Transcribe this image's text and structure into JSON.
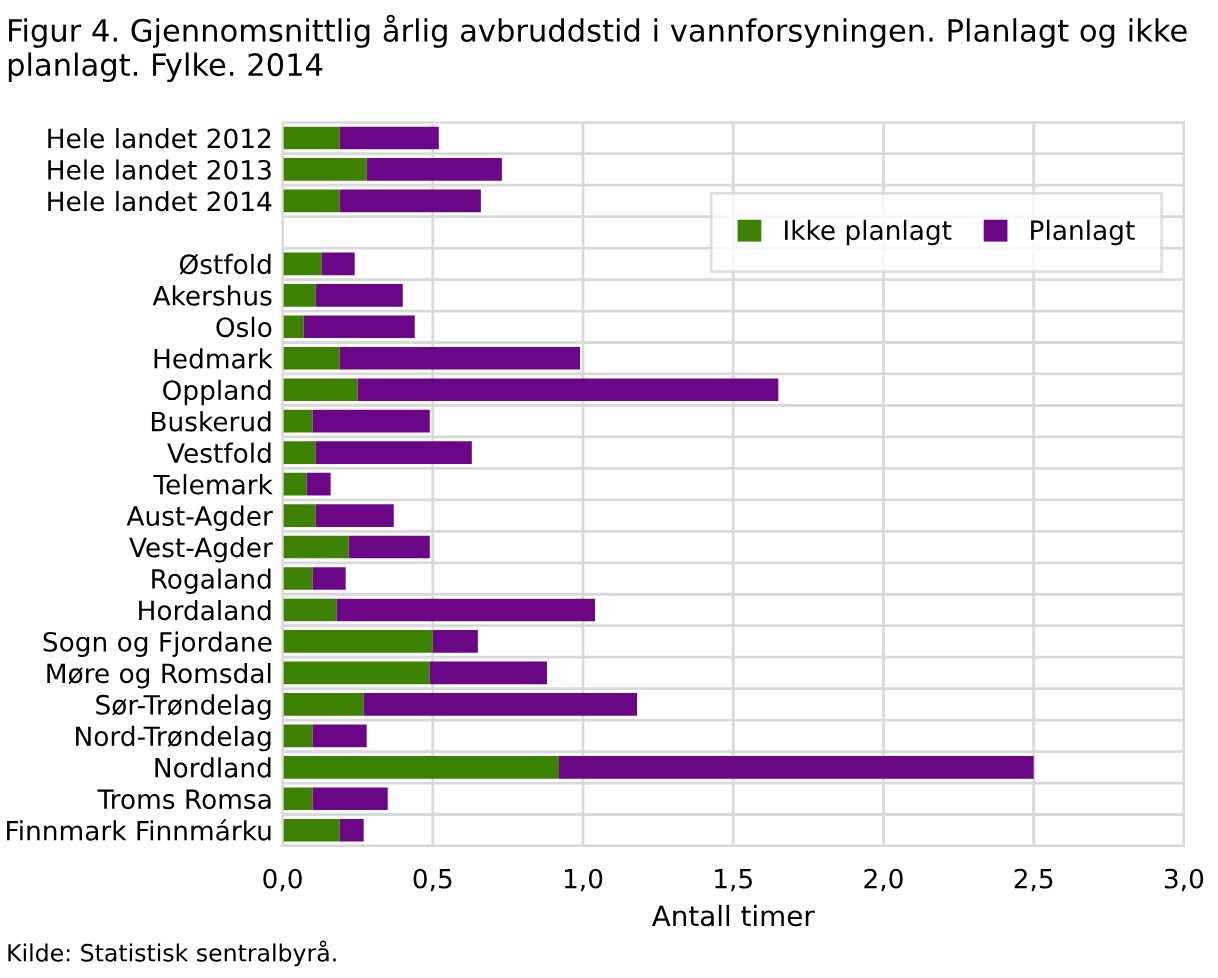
{
  "chart_data": {
    "type": "bar",
    "orientation": "horizontal",
    "stacked": true,
    "title": "Figur 4. Gjennomsnittlig årlig avbruddstid i vannforsyningen. Planlagt og ikke planlagt. Fylke. 2014",
    "xlabel": "Antall timer",
    "annotations": [
      "Kilde: Statistisk sentralbyrå."
    ],
    "categories": [
      "Hele landet 2012",
      "Hele landet 2013",
      "Hele landet 2014",
      null,
      "Østfold",
      "Akershus",
      "Oslo",
      "Hedmark",
      "Oppland",
      "Buskerud",
      "Vestfold",
      "Telemark",
      "Aust-Agder",
      "Vest-Agder",
      "Rogaland",
      "Hordaland",
      "Sogn og Fjordane",
      "Møre og Romsdal",
      "Sør-Trøndelag",
      "Nord-Trøndelag",
      "Nordland",
      "Troms Romsa",
      "Finnmark Finnmárku"
    ],
    "series": [
      {
        "name": "Ikke planlagt",
        "color": "#3c8200",
        "values": [
          0.19,
          0.28,
          0.19,
          null,
          0.13,
          0.11,
          0.07,
          0.19,
          0.25,
          0.1,
          0.11,
          0.08,
          0.11,
          0.22,
          0.1,
          0.18,
          0.5,
          0.49,
          0.27,
          0.1,
          0.92,
          0.1,
          0.19
        ]
      },
      {
        "name": "Planlagt",
        "color": "#6b0786",
        "values": [
          0.33,
          0.45,
          0.47,
          null,
          0.11,
          0.29,
          0.37,
          0.8,
          1.4,
          0.39,
          0.52,
          0.08,
          0.26,
          0.27,
          0.11,
          0.86,
          0.15,
          0.39,
          0.91,
          0.18,
          1.58,
          0.25,
          0.08
        ]
      }
    ],
    "xlim": [
      0,
      3.0
    ],
    "xticks": [
      {
        "value": 0,
        "label": "0,0"
      },
      {
        "value": 0.5,
        "label": "0,5"
      },
      {
        "value": 1.0,
        "label": "1,0"
      },
      {
        "value": 1.5,
        "label": "1,5"
      },
      {
        "value": 2.0,
        "label": "2,0"
      },
      {
        "value": 2.5,
        "label": "2,5"
      },
      {
        "value": 3.0,
        "label": "3,0"
      }
    ],
    "grid": true,
    "legend": "top right"
  }
}
